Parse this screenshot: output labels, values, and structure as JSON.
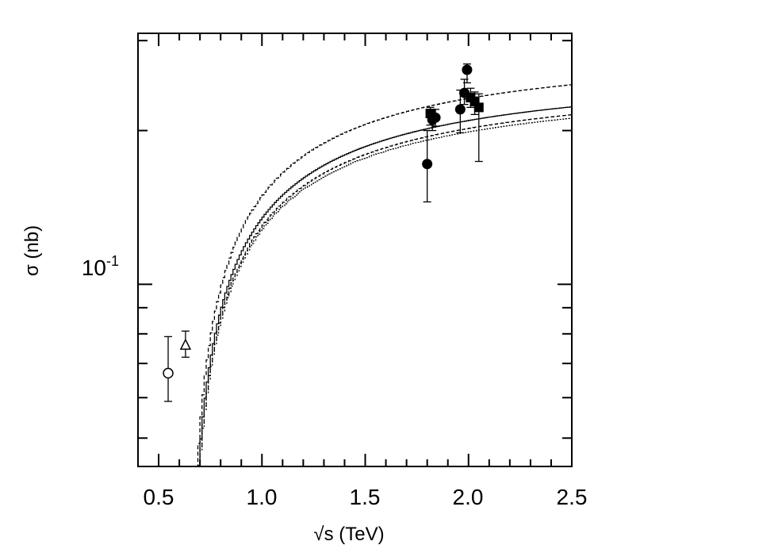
{
  "chart_data": {
    "type": "scatter",
    "title": "",
    "xlabel": "√s (TeV)",
    "ylabel": "σ (nb)",
    "xlim": [
      0.4,
      2.5
    ],
    "ylim": [
      0.044,
      0.31
    ],
    "yscale": "log",
    "grid": false,
    "x_ticks": [
      "0.5",
      "1.0",
      "1.5",
      "2.0",
      "2.5"
    ],
    "x_tick_values": [
      0.5,
      1.0,
      1.5,
      2.0,
      2.5
    ],
    "y_ticks": [
      "10^-1"
    ],
    "y_tick_values": [
      0.1
    ],
    "curves": [
      {
        "style": "dashed",
        "scale": 1.105
      },
      {
        "style": "solid",
        "scale": 1.0
      },
      {
        "style": "dashed",
        "scale": 0.965
      },
      {
        "style": "dotted",
        "scale": 0.95
      }
    ],
    "curve_model": {
      "A": 0.2725,
      "s0": 0.6425,
      "p": 0.68
    },
    "series": [
      {
        "marker": "open-circle",
        "points": [
          {
            "x": 0.546,
            "y": 0.067,
            "ylo": 0.059,
            "yhi": 0.079
          }
        ]
      },
      {
        "marker": "open-triangle",
        "points": [
          {
            "x": 0.63,
            "y": 0.076,
            "ylo": 0.072,
            "yhi": 0.081
          }
        ]
      },
      {
        "marker": "filled-circle",
        "points": [
          {
            "x": 1.8,
            "y": 0.172,
            "ylo": 0.145,
            "yhi": 0.2
          },
          {
            "x": 1.825,
            "y": 0.21,
            "ylo": 0.2,
            "yhi": 0.22
          },
          {
            "x": 1.84,
            "y": 0.212,
            "ylo": 0.204,
            "yhi": 0.22
          },
          {
            "x": 1.96,
            "y": 0.22,
            "ylo": 0.198,
            "yhi": 0.24
          },
          {
            "x": 1.98,
            "y": 0.237,
            "ylo": 0.225,
            "yhi": 0.252
          },
          {
            "x": 1.993,
            "y": 0.263,
            "ylo": 0.248,
            "yhi": 0.27
          }
        ]
      },
      {
        "marker": "filled-square",
        "points": [
          {
            "x": 1.815,
            "y": 0.216,
            "ylo": 0.205,
            "yhi": 0.222
          },
          {
            "x": 2.01,
            "y": 0.232,
            "ylo": 0.222,
            "yhi": 0.242
          },
          {
            "x": 2.03,
            "y": 0.228,
            "ylo": 0.215,
            "yhi": 0.238
          },
          {
            "x": 2.05,
            "y": 0.222,
            "ylo": 0.174,
            "yhi": 0.236
          }
        ]
      }
    ]
  }
}
